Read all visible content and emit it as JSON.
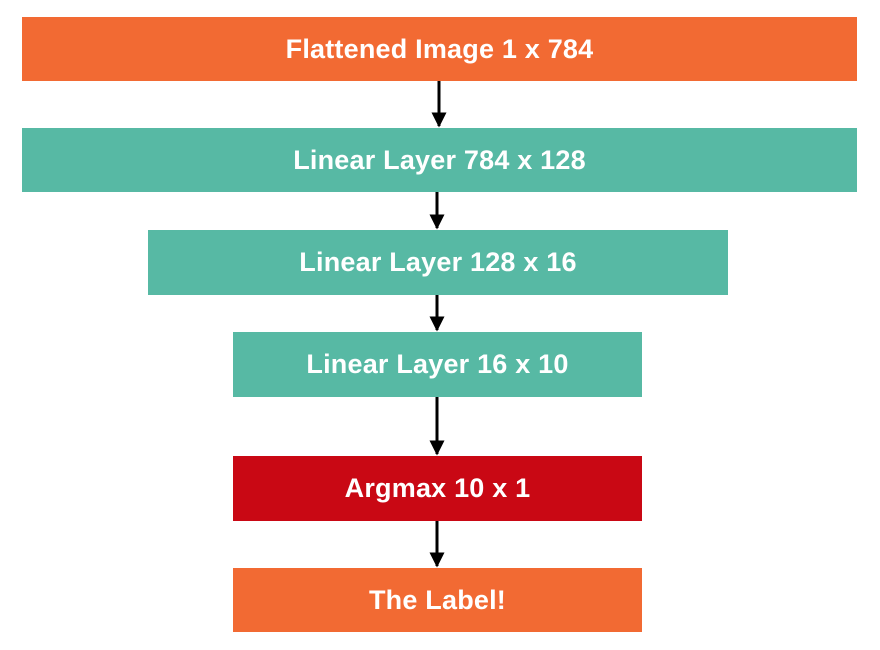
{
  "colors": {
    "orange": "#f26a33",
    "teal": "#57b9a4",
    "red": "#c90814",
    "arrow": "#000000"
  },
  "nodes": [
    {
      "id": "input",
      "label": "Flattened Image 1 x 784",
      "color": "orange"
    },
    {
      "id": "linear1",
      "label": "Linear Layer 784 x 128",
      "color": "teal"
    },
    {
      "id": "linear2",
      "label": "Linear Layer 128 x 16",
      "color": "teal"
    },
    {
      "id": "linear3",
      "label": "Linear Layer 16 x 10",
      "color": "teal"
    },
    {
      "id": "argmax",
      "label": "Argmax 10 x 1",
      "color": "red"
    },
    {
      "id": "output",
      "label": "The Label!",
      "color": "orange"
    }
  ],
  "edges": [
    {
      "from": "input",
      "to": "linear1"
    },
    {
      "from": "linear1",
      "to": "linear2"
    },
    {
      "from": "linear2",
      "to": "linear3"
    },
    {
      "from": "linear3",
      "to": "argmax"
    },
    {
      "from": "argmax",
      "to": "output"
    }
  ]
}
